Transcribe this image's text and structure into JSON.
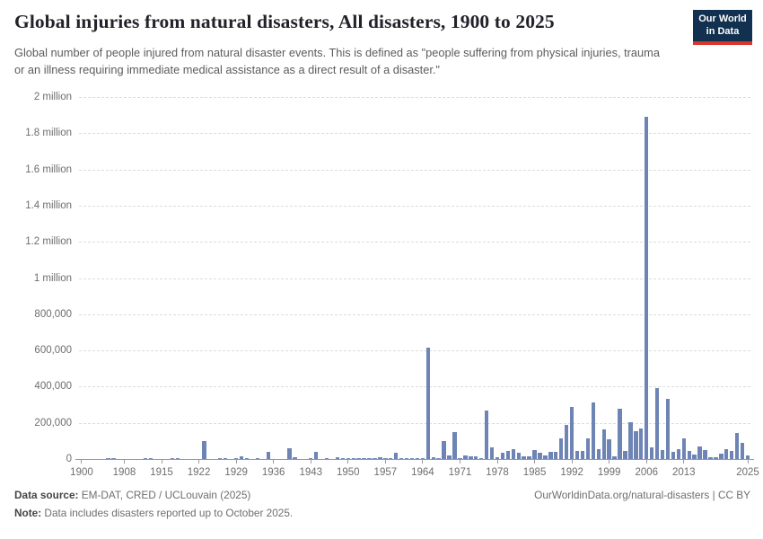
{
  "header": {
    "title": "Global injuries from natural disasters, All disasters, 1900 to 2025",
    "subtitle": "Global number of people injured from natural disaster events. This is defined as \"people suffering from physical injuries, trauma or an illness requiring immediate medical assistance as a direct result of a disaster.\"",
    "logo": {
      "line1": "Our World",
      "line2": "in Data",
      "bg_color": "#12304f",
      "accent_color": "#d8352b"
    }
  },
  "chart_data": {
    "type": "bar",
    "title": "Global injuries from natural disasters, All disasters, 1900 to 2025",
    "xlabel": "",
    "ylabel": "",
    "ylim": [
      0,
      2000000
    ],
    "grid": true,
    "bar_color": "#6d84b5",
    "year_start": 1900,
    "year_end": 2025,
    "yticks": {
      "values": [
        0,
        200000,
        400000,
        600000,
        800000,
        1000000,
        1200000,
        1400000,
        1600000,
        1800000,
        2000000
      ],
      "labels": [
        "0",
        "200,000",
        "400,000",
        "600,000",
        "800,000",
        "1 million",
        "1.2 million",
        "1.4 million",
        "1.6 million",
        "1.8 million",
        "2 million"
      ]
    },
    "xticks": [
      1900,
      1908,
      1915,
      1922,
      1929,
      1936,
      1943,
      1950,
      1957,
      1964,
      1971,
      1978,
      1985,
      1992,
      1999,
      2006,
      2013,
      2025
    ],
    "values": [
      0,
      0,
      0,
      0,
      0,
      1000,
      2500,
      0,
      0,
      0,
      0,
      0,
      1500,
      1000,
      0,
      0,
      0,
      2000,
      1000,
      0,
      0,
      0,
      0,
      100000,
      0,
      0,
      3000,
      2000,
      0,
      3000,
      13000,
      4000,
      0,
      2000,
      0,
      41000,
      0,
      0,
      0,
      58000,
      8000,
      0,
      0,
      2000,
      38000,
      0,
      2000,
      0,
      10000,
      2000,
      3000,
      3000,
      4000,
      6000,
      3000,
      2000,
      10000,
      3000,
      2000,
      33000,
      5000,
      2000,
      3000,
      2000,
      3000,
      615000,
      10000,
      6000,
      101000,
      21000,
      147000,
      5000,
      21000,
      15000,
      17000,
      2000,
      266000,
      64000,
      8000,
      33000,
      46000,
      55000,
      35000,
      16000,
      13000,
      48000,
      35000,
      18000,
      38000,
      41000,
      113000,
      187000,
      289000,
      46000,
      46000,
      113000,
      311000,
      55000,
      162000,
      109000,
      13000,
      278000,
      46000,
      203000,
      154000,
      167000,
      1890000,
      63000,
      390000,
      48000,
      335000,
      41000,
      55000,
      113000,
      46000,
      25000,
      71000,
      50000,
      10000,
      8000,
      30000,
      55000,
      46000,
      145000,
      91000,
      18000
    ]
  },
  "footer": {
    "source_label": "Data source:",
    "source_text": " EM-DAT, CRED / UCLouvain (2025)",
    "note_label": "Note:",
    "note_text": " Data includes disasters reported up to October 2025.",
    "right_text": "OurWorldinData.org/natural-disasters | CC BY"
  }
}
